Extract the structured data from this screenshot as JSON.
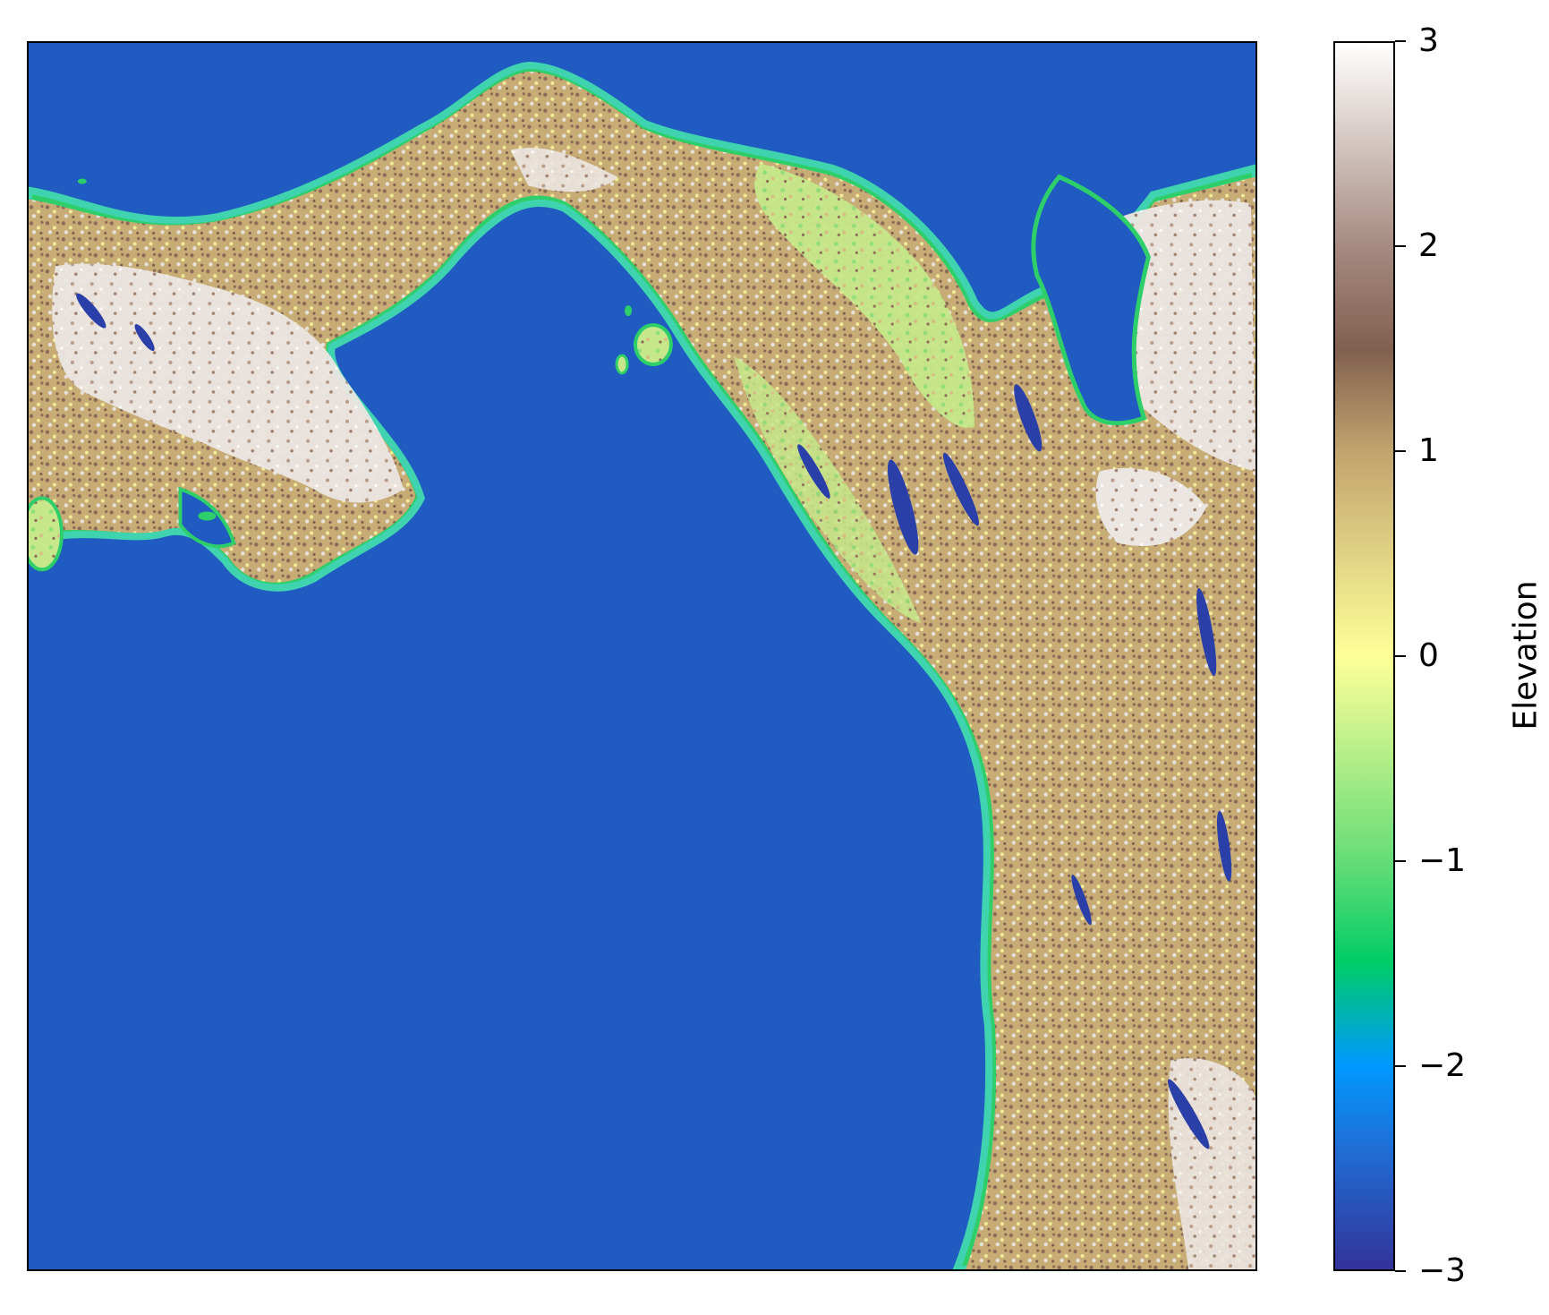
{
  "map": {
    "colormap": "terrain",
    "sea_color": "#1f5bc0",
    "land_colors": [
      "#2ecf6a",
      "#c6e88a",
      "#f8f08a",
      "#c7ad75",
      "#8b6a58",
      "#e8e2dd",
      "#ffffff",
      "#2a3fa8"
    ]
  },
  "colorbar": {
    "label": "Elevation",
    "min": -3,
    "max": 3,
    "ticks": [
      "3",
      "2",
      "1",
      "0",
      "−1",
      "−2",
      "−3"
    ],
    "gradient_stops": [
      {
        "value": -3,
        "color": "#333399"
      },
      {
        "value": -2.4,
        "color": "#1f6fd6"
      },
      {
        "value": -2,
        "color": "#0099ff"
      },
      {
        "value": -1.5,
        "color": "#00cc66"
      },
      {
        "value": -1,
        "color": "#66dd77"
      },
      {
        "value": 0,
        "color": "#ffff99"
      },
      {
        "value": 1,
        "color": "#c2a46e"
      },
      {
        "value": 1.5,
        "color": "#80604f"
      },
      {
        "value": 2,
        "color": "#a68a80"
      },
      {
        "value": 3,
        "color": "#ffffff"
      }
    ]
  }
}
